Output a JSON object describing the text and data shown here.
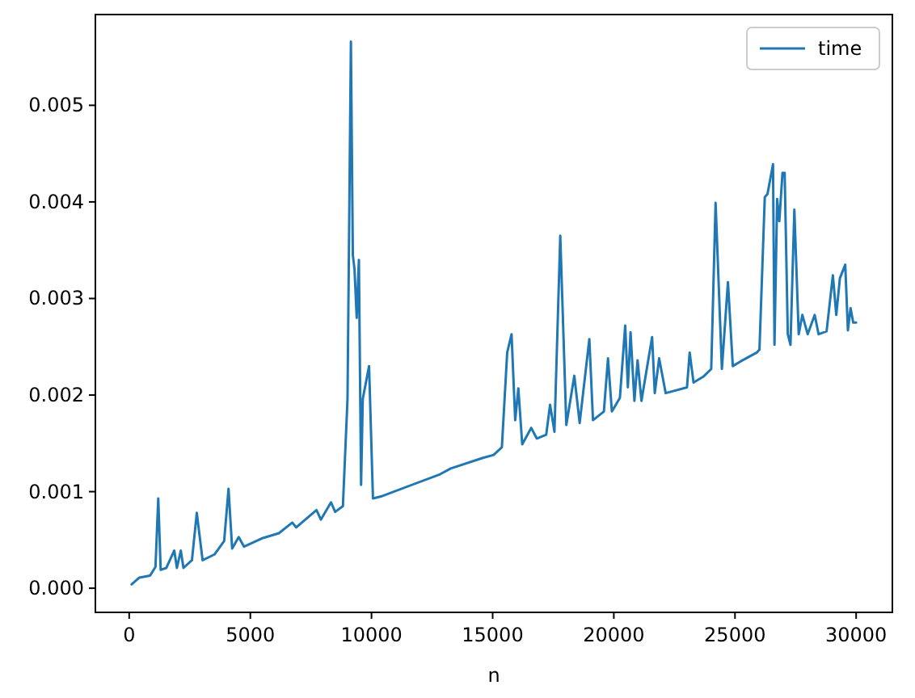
{
  "chart_data": {
    "type": "line",
    "xlabel": "n",
    "xlim": [
      -1395,
      31495
    ],
    "ylim": [
      -0.00025,
      0.00594
    ],
    "xticks": [
      0,
      5000,
      10000,
      15000,
      20000,
      25000,
      30000
    ],
    "yticks": [
      {
        "value": 0,
        "label": "0.000"
      },
      {
        "value": 0.001,
        "label": "0.001"
      },
      {
        "value": 0.002,
        "label": "0.002"
      },
      {
        "value": 0.003,
        "label": "0.003"
      },
      {
        "value": 0.004,
        "label": "0.004"
      },
      {
        "value": 0.005,
        "label": "0.005"
      }
    ],
    "grid": false,
    "legend": "top right",
    "line_style": "solid",
    "series": [
      {
        "name": "time",
        "color": "#1f77b4",
        "x": [
          100,
          420,
          860,
          1085,
          1200,
          1300,
          1530,
          1860,
          1970,
          2130,
          2240,
          2590,
          2790,
          3030,
          3520,
          3920,
          4100,
          4250,
          4520,
          4740,
          5520,
          6180,
          6730,
          6890,
          7730,
          7910,
          8330,
          8500,
          8820,
          9010,
          9150,
          9230,
          9300,
          9390,
          9480,
          9570,
          9640,
          9900,
          10060,
          10390,
          12830,
          13270,
          14600,
          15040,
          15380,
          15600,
          15780,
          15930,
          16060,
          16220,
          16590,
          16820,
          17210,
          17370,
          17550,
          17790,
          18040,
          18370,
          18590,
          18990,
          19140,
          19590,
          19760,
          19920,
          20250,
          20470,
          20580,
          20690,
          20850,
          20980,
          21140,
          21580,
          21690,
          21870,
          22140,
          23020,
          23130,
          23290,
          23690,
          24020,
          24200,
          24460,
          24710,
          24910,
          25240,
          25900,
          26010,
          26230,
          26340,
          26570,
          26630,
          26740,
          26830,
          26960,
          27050,
          27180,
          27290,
          27450,
          27630,
          27780,
          28000,
          28290,
          28450,
          28780,
          29040,
          29180,
          29330,
          29550,
          29660,
          29770,
          29880,
          30000
        ],
        "values": [
          4e-05,
          0.00011,
          0.00013,
          0.00022,
          0.00093,
          0.00019,
          0.00021,
          0.00039,
          0.00021,
          0.00039,
          0.00021,
          0.00029,
          0.00078,
          0.00029,
          0.00035,
          0.00049,
          0.00103,
          0.00041,
          0.00053,
          0.00043,
          0.00052,
          0.00057,
          0.00068,
          0.00063,
          0.00081,
          0.00071,
          0.00089,
          0.00079,
          0.00085,
          0.00196,
          0.00566,
          0.00345,
          0.0033,
          0.0028,
          0.0034,
          0.00107,
          0.00196,
          0.0023,
          0.00093,
          0.00095,
          0.00118,
          0.00124,
          0.00135,
          0.00138,
          0.00146,
          0.00244,
          0.00263,
          0.00174,
          0.00207,
          0.00149,
          0.00166,
          0.00155,
          0.00159,
          0.0019,
          0.00162,
          0.00365,
          0.00169,
          0.0022,
          0.00171,
          0.00258,
          0.00174,
          0.00183,
          0.00238,
          0.00183,
          0.00197,
          0.00272,
          0.00208,
          0.00265,
          0.00194,
          0.00236,
          0.00194,
          0.0026,
          0.00202,
          0.00238,
          0.00202,
          0.00208,
          0.00244,
          0.00213,
          0.00219,
          0.00227,
          0.00399,
          0.00227,
          0.00317,
          0.0023,
          0.00235,
          0.00244,
          0.00247,
          0.00405,
          0.00408,
          0.00439,
          0.00252,
          0.00403,
          0.0038,
          0.0043,
          0.0043,
          0.00263,
          0.00252,
          0.00392,
          0.00263,
          0.00283,
          0.00263,
          0.00283,
          0.00263,
          0.00266,
          0.00324,
          0.00283,
          0.00321,
          0.00335,
          0.00267,
          0.0029,
          0.00275,
          0.00275
        ]
      }
    ]
  }
}
